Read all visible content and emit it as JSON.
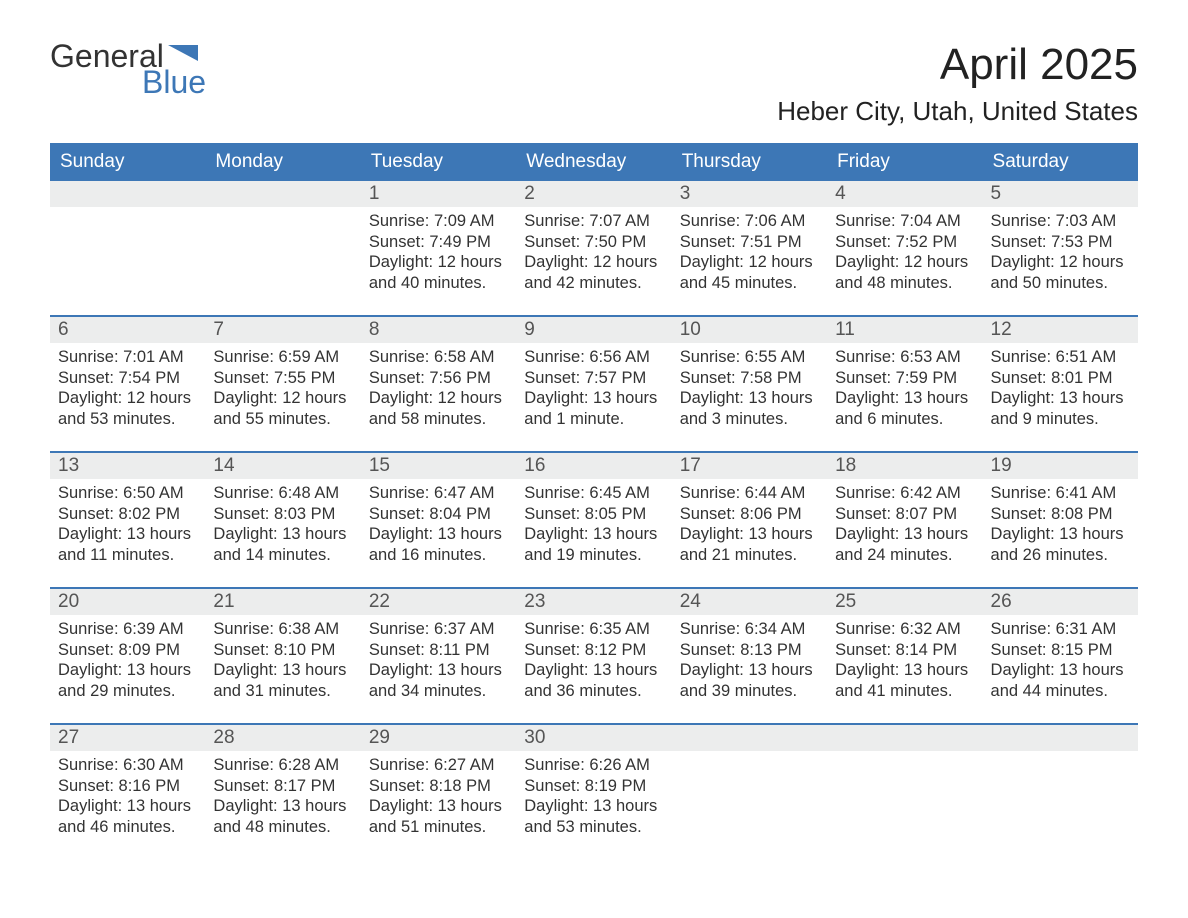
{
  "logo": {
    "word1": "General",
    "word2": "Blue"
  },
  "title": {
    "month": "April 2025",
    "location": "Heber City, Utah, United States"
  },
  "colors": {
    "header_bg": "#3d77b6",
    "header_text": "#ffffff",
    "daynum_bg": "#eceded",
    "week_divider": "#3d77b6",
    "body_text": "#333333",
    "logo_blue": "#3d77b6",
    "background": "#ffffff"
  },
  "calendar": {
    "type": "table",
    "day_headers": [
      "Sunday",
      "Monday",
      "Tuesday",
      "Wednesday",
      "Thursday",
      "Friday",
      "Saturday"
    ],
    "weeks": [
      [
        null,
        null,
        {
          "n": "1",
          "sunrise": "7:09 AM",
          "sunset": "7:49 PM",
          "daylight": "12 hours and 40 minutes."
        },
        {
          "n": "2",
          "sunrise": "7:07 AM",
          "sunset": "7:50 PM",
          "daylight": "12 hours and 42 minutes."
        },
        {
          "n": "3",
          "sunrise": "7:06 AM",
          "sunset": "7:51 PM",
          "daylight": "12 hours and 45 minutes."
        },
        {
          "n": "4",
          "sunrise": "7:04 AM",
          "sunset": "7:52 PM",
          "daylight": "12 hours and 48 minutes."
        },
        {
          "n": "5",
          "sunrise": "7:03 AM",
          "sunset": "7:53 PM",
          "daylight": "12 hours and 50 minutes."
        }
      ],
      [
        {
          "n": "6",
          "sunrise": "7:01 AM",
          "sunset": "7:54 PM",
          "daylight": "12 hours and 53 minutes."
        },
        {
          "n": "7",
          "sunrise": "6:59 AM",
          "sunset": "7:55 PM",
          "daylight": "12 hours and 55 minutes."
        },
        {
          "n": "8",
          "sunrise": "6:58 AM",
          "sunset": "7:56 PM",
          "daylight": "12 hours and 58 minutes."
        },
        {
          "n": "9",
          "sunrise": "6:56 AM",
          "sunset": "7:57 PM",
          "daylight": "13 hours and 1 minute."
        },
        {
          "n": "10",
          "sunrise": "6:55 AM",
          "sunset": "7:58 PM",
          "daylight": "13 hours and 3 minutes."
        },
        {
          "n": "11",
          "sunrise": "6:53 AM",
          "sunset": "7:59 PM",
          "daylight": "13 hours and 6 minutes."
        },
        {
          "n": "12",
          "sunrise": "6:51 AM",
          "sunset": "8:01 PM",
          "daylight": "13 hours and 9 minutes."
        }
      ],
      [
        {
          "n": "13",
          "sunrise": "6:50 AM",
          "sunset": "8:02 PM",
          "daylight": "13 hours and 11 minutes."
        },
        {
          "n": "14",
          "sunrise": "6:48 AM",
          "sunset": "8:03 PM",
          "daylight": "13 hours and 14 minutes."
        },
        {
          "n": "15",
          "sunrise": "6:47 AM",
          "sunset": "8:04 PM",
          "daylight": "13 hours and 16 minutes."
        },
        {
          "n": "16",
          "sunrise": "6:45 AM",
          "sunset": "8:05 PM",
          "daylight": "13 hours and 19 minutes."
        },
        {
          "n": "17",
          "sunrise": "6:44 AM",
          "sunset": "8:06 PM",
          "daylight": "13 hours and 21 minutes."
        },
        {
          "n": "18",
          "sunrise": "6:42 AM",
          "sunset": "8:07 PM",
          "daylight": "13 hours and 24 minutes."
        },
        {
          "n": "19",
          "sunrise": "6:41 AM",
          "sunset": "8:08 PM",
          "daylight": "13 hours and 26 minutes."
        }
      ],
      [
        {
          "n": "20",
          "sunrise": "6:39 AM",
          "sunset": "8:09 PM",
          "daylight": "13 hours and 29 minutes."
        },
        {
          "n": "21",
          "sunrise": "6:38 AM",
          "sunset": "8:10 PM",
          "daylight": "13 hours and 31 minutes."
        },
        {
          "n": "22",
          "sunrise": "6:37 AM",
          "sunset": "8:11 PM",
          "daylight": "13 hours and 34 minutes."
        },
        {
          "n": "23",
          "sunrise": "6:35 AM",
          "sunset": "8:12 PM",
          "daylight": "13 hours and 36 minutes."
        },
        {
          "n": "24",
          "sunrise": "6:34 AM",
          "sunset": "8:13 PM",
          "daylight": "13 hours and 39 minutes."
        },
        {
          "n": "25",
          "sunrise": "6:32 AM",
          "sunset": "8:14 PM",
          "daylight": "13 hours and 41 minutes."
        },
        {
          "n": "26",
          "sunrise": "6:31 AM",
          "sunset": "8:15 PM",
          "daylight": "13 hours and 44 minutes."
        }
      ],
      [
        {
          "n": "27",
          "sunrise": "6:30 AM",
          "sunset": "8:16 PM",
          "daylight": "13 hours and 46 minutes."
        },
        {
          "n": "28",
          "sunrise": "6:28 AM",
          "sunset": "8:17 PM",
          "daylight": "13 hours and 48 minutes."
        },
        {
          "n": "29",
          "sunrise": "6:27 AM",
          "sunset": "8:18 PM",
          "daylight": "13 hours and 51 minutes."
        },
        {
          "n": "30",
          "sunrise": "6:26 AM",
          "sunset": "8:19 PM",
          "daylight": "13 hours and 53 minutes."
        },
        null,
        null,
        null
      ]
    ],
    "labels": {
      "sunrise": "Sunrise: ",
      "sunset": "Sunset: ",
      "daylight": "Daylight: "
    }
  }
}
